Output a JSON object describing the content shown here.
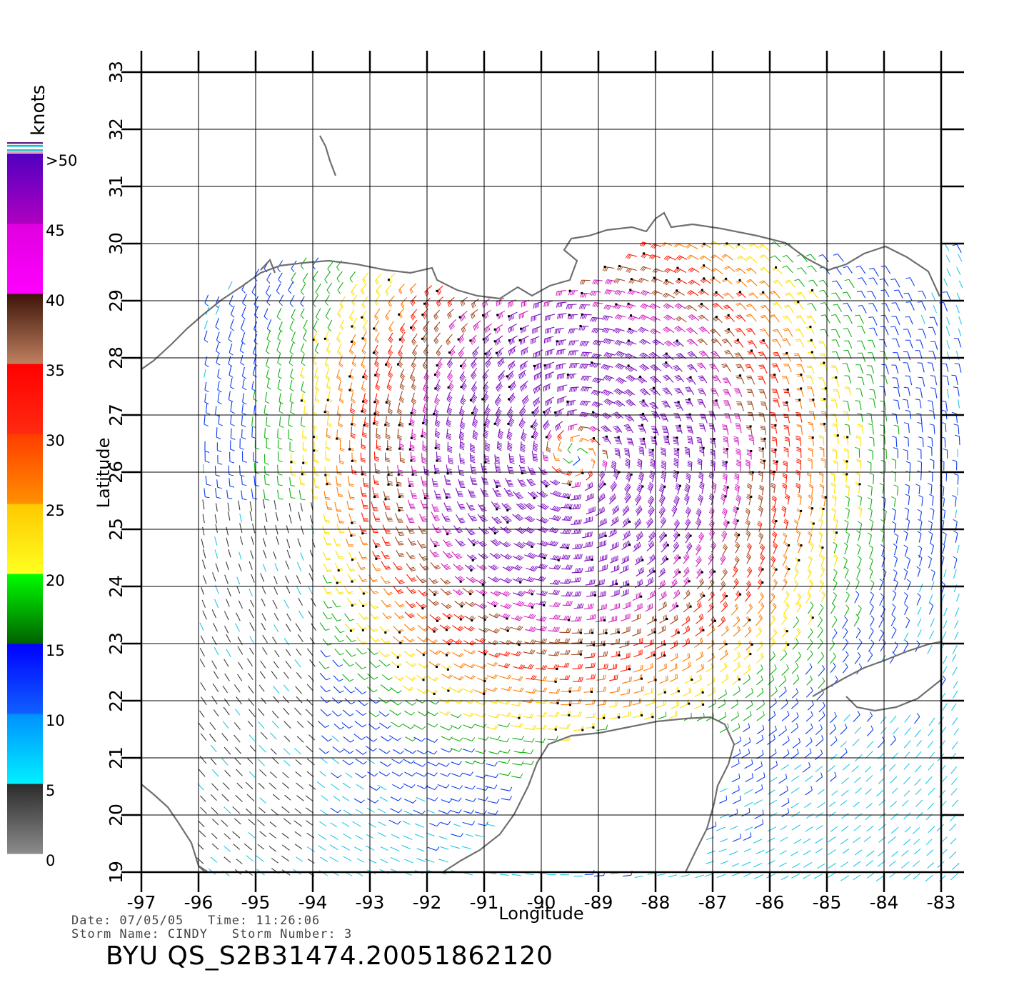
{
  "colorbar": {
    "unit_label": "knots",
    "ticks": [
      {
        "label": ">50",
        "value": 50
      },
      {
        "label": "45",
        "value": 45
      },
      {
        "label": "40",
        "value": 40
      },
      {
        "label": "35",
        "value": 35
      },
      {
        "label": "30",
        "value": 30
      },
      {
        "label": "25",
        "value": 25
      },
      {
        "label": "20",
        "value": 20
      },
      {
        "label": "15",
        "value": 15
      },
      {
        "label": "10",
        "value": 10
      },
      {
        "label": "5",
        "value": 5
      },
      {
        "label": "0",
        "value": 0
      }
    ],
    "bands": [
      {
        "from": 0,
        "to": 5,
        "top": "#2a2a2a",
        "bottom": "#8c8c8c"
      },
      {
        "from": 5,
        "to": 10,
        "top": "#0090ff",
        "bottom": "#00f0ff"
      },
      {
        "from": 10,
        "to": 15,
        "top": "#0000ff",
        "bottom": "#1060ff"
      },
      {
        "from": 15,
        "to": 20,
        "top": "#00ff00",
        "bottom": "#006000"
      },
      {
        "from": 20,
        "to": 25,
        "top": "#ffc800",
        "bottom": "#ffff20"
      },
      {
        "from": 25,
        "to": 30,
        "top": "#ff3c00",
        "bottom": "#ff9000"
      },
      {
        "from": 30,
        "to": 35,
        "top": "#ff0000",
        "bottom": "#ff2a10"
      },
      {
        "from": 35,
        "to": 40,
        "top": "#3c1408",
        "bottom": "#c08060"
      },
      {
        "from": 40,
        "to": 45,
        "top": "#e000e0",
        "bottom": "#ff00ff"
      },
      {
        "from": 45,
        "to": 50,
        "top": "#5000c0",
        "bottom": "#b000c0"
      }
    ]
  },
  "map": {
    "xlabel": "Longitude",
    "ylabel": "Latitude",
    "lon_range": [
      -97,
      -83
    ],
    "lat_range": [
      19,
      33
    ],
    "lon_ticks": [
      "-97",
      "-96",
      "-95",
      "-94",
      "-93",
      "-92",
      "-91",
      "-90",
      "-89",
      "-88",
      "-87",
      "-86",
      "-85",
      "-84",
      "-83"
    ],
    "lat_ticks": [
      "19",
      "20",
      "21",
      "22",
      "23",
      "24",
      "25",
      "26",
      "27",
      "28",
      "29",
      "30",
      "31",
      "32",
      "33"
    ],
    "storm_center": {
      "lon": -89.4,
      "lat": 26.3
    },
    "coastline_color": "#707070"
  },
  "header": {
    "line1": "Date: 07/05/05   Time: 11:26:06",
    "line2": "Storm Name: CINDY   Storm Number: 3",
    "file_id": "BYU QS_S2B31474.20051862120"
  }
}
